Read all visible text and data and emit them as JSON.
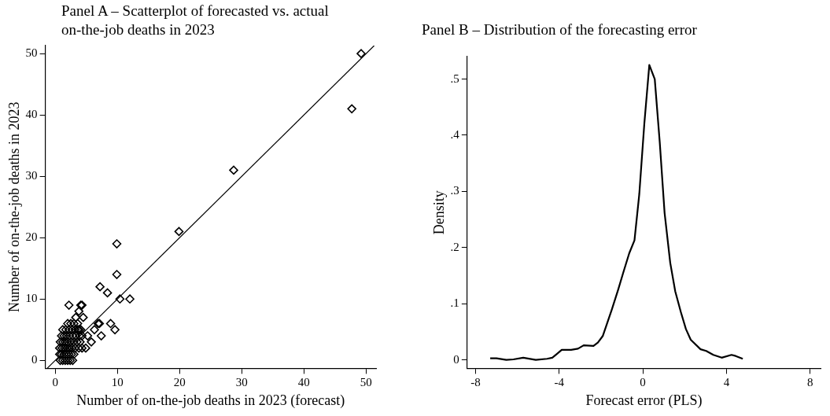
{
  "chart_data": [
    {
      "type": "scatter",
      "title": "Panel A – Scatterplot of forecasted vs. actual on-the-job deaths in 2023",
      "xlabel": "Number of on-the-job deaths in 2023 (forecast)",
      "ylabel": "Number of on-the-job deaths in 2023",
      "xlim": [
        -1.6,
        51.6
      ],
      "ylim": [
        -1.3,
        51.3
      ],
      "xticks": [
        0,
        10,
        20,
        30,
        40,
        50
      ],
      "yticks": [
        0,
        10,
        20,
        30,
        40,
        50
      ],
      "grid": false,
      "legend": false,
      "series": [
        {
          "type": "scatter",
          "marker": "diamond",
          "color": "#000000",
          "x": [
            49.2,
            47.7,
            28.7,
            19.9,
            9.9,
            9.9,
            7.2,
            8.4,
            10.4,
            12,
            2.2,
            4.3,
            4.1,
            3.8,
            3.3,
            4.5,
            8.9,
            6.9,
            7.1,
            9.6,
            6.3,
            7.4,
            5.8,
            4.9,
            4.3,
            5.2,
            4.3,
            3.8,
            0.8,
            1.2,
            1.6,
            2.0,
            2.4,
            2.8,
            0.7,
            1.0,
            1.4,
            1.8,
            2.2,
            2.6,
            3.0,
            0.7,
            1.1,
            1.5,
            1.9,
            2.3,
            2.7,
            3.2,
            3.8,
            0.8,
            1.2,
            1.6,
            2.0,
            2.5,
            3.0,
            3.5,
            4.0,
            1.0,
            1.4,
            1.8,
            2.3,
            2.8,
            3.3,
            3.9,
            1.2,
            1.7,
            2.2,
            2.7,
            3.2,
            3.6,
            4.1,
            2.0,
            2.5,
            3.0,
            3.6
          ],
          "values": [
            50,
            41,
            31,
            21,
            19,
            14,
            12,
            11,
            10,
            10,
            9,
            9,
            9,
            8,
            7,
            7,
            6,
            6,
            6,
            5,
            5,
            4,
            3,
            2,
            2,
            4,
            4,
            5,
            0,
            0,
            0,
            0,
            0,
            0,
            1,
            1,
            1,
            1,
            1,
            1,
            1,
            2,
            2,
            2,
            2,
            2,
            2,
            2,
            2,
            3,
            3,
            3,
            3,
            3,
            3,
            3,
            3,
            4,
            4,
            4,
            4,
            4,
            4,
            4,
            5,
            5,
            5,
            5,
            5,
            5,
            5,
            6,
            6,
            6,
            6
          ]
        },
        {
          "type": "line",
          "marker": "none",
          "color": "#000000",
          "x": [
            -1.3,
            51.3
          ],
          "values": [
            -1.3,
            51.3
          ]
        }
      ]
    },
    {
      "type": "line",
      "title": "Panel B – Distribution of the forecasting error",
      "xlabel": "Forecast error (PLS)",
      "ylabel": "Density",
      "xlim": [
        -8.4,
        8.5
      ],
      "ylim": [
        -0.015,
        0.54
      ],
      "xticks": [
        -8,
        -4,
        0,
        4,
        8
      ],
      "yticks": [
        0,
        {
          "value": 0.1,
          "label": ".1"
        },
        {
          "value": 0.2,
          "label": ".2"
        },
        {
          "value": 0.3,
          "label": ".3"
        },
        {
          "value": 0.4,
          "label": ".4"
        },
        {
          "value": 0.5,
          "label": ".5"
        }
      ],
      "grid": false,
      "legend": false,
      "series": [
        {
          "type": "line",
          "marker": "none",
          "color": "#000000",
          "x": [
            -7.3,
            -7.0,
            -6.53,
            -6.19,
            -5.72,
            -5.12,
            -4.58,
            -4.33,
            -4.1,
            -3.88,
            -3.43,
            -3.1,
            -2.83,
            -2.36,
            -2.15,
            -1.91,
            -1.48,
            -1.18,
            -0.94,
            -0.65,
            -0.4,
            -0.17,
            0.07,
            0.31,
            0.57,
            0.81,
            1.04,
            1.31,
            1.55,
            1.82,
            2.06,
            2.29,
            2.76,
            3.03,
            3.37,
            3.77,
            4.24,
            4.44,
            4.78
          ],
          "values": [
            0.003,
            0.003,
            0.0,
            0.001,
            0.004,
            0.0,
            0.002,
            0.004,
            0.011,
            0.018,
            0.018,
            0.02,
            0.026,
            0.025,
            0.031,
            0.043,
            0.09,
            0.125,
            0.155,
            0.19,
            0.213,
            0.295,
            0.42,
            0.525,
            0.5,
            0.387,
            0.262,
            0.173,
            0.122,
            0.085,
            0.055,
            0.036,
            0.019,
            0.016,
            0.009,
            0.004,
            0.009,
            0.007,
            0.002
          ]
        }
      ]
    }
  ]
}
